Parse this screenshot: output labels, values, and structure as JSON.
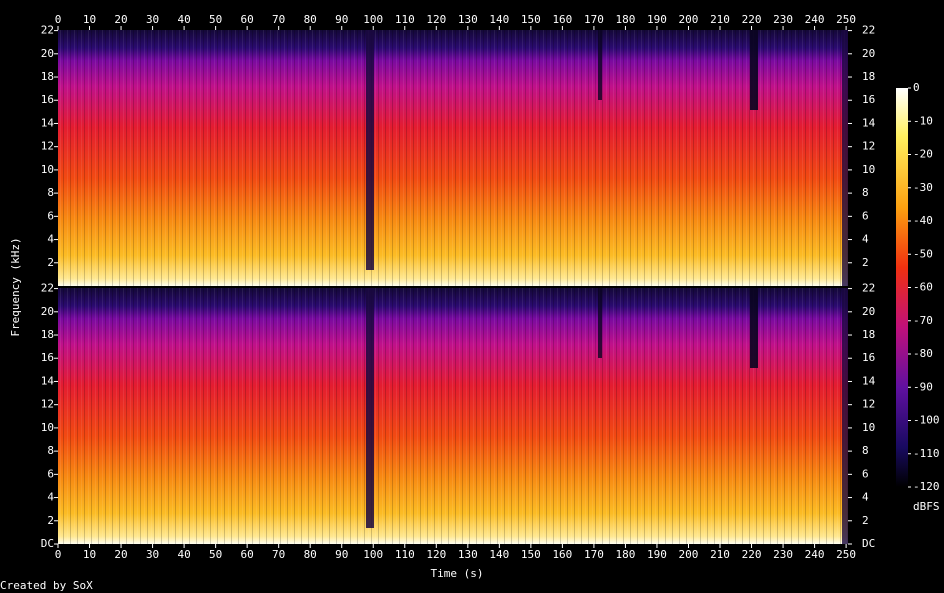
{
  "chart_data": {
    "type": "spectrogram",
    "xlabel": "Time (s)",
    "ylabel": "Frequency (kHz)",
    "xlim": [
      0,
      250.6
    ],
    "xticks": [
      0,
      10,
      20,
      30,
      40,
      50,
      60,
      70,
      80,
      90,
      100,
      110,
      120,
      130,
      140,
      150,
      160,
      170,
      180,
      190,
      200,
      210,
      220,
      230,
      240,
      250
    ],
    "panels": [
      {
        "ylim": [
          0,
          22.05
        ],
        "yticks": [
          2,
          4,
          6,
          8,
          10,
          12,
          14,
          16,
          18,
          20,
          22
        ]
      },
      {
        "ylim": [
          0,
          22.05
        ],
        "yticks": [
          {
            "value": 0,
            "label": "DC"
          },
          2,
          4,
          6,
          8,
          10,
          12,
          14,
          16,
          18,
          20,
          22
        ]
      }
    ],
    "colorbar": {
      "label": "dBFS",
      "lim": [
        -120,
        0
      ],
      "ticks": [
        0,
        -10,
        -20,
        -30,
        -40,
        -50,
        -60,
        -70,
        -80,
        -90,
        -100,
        -110,
        -120
      ]
    },
    "credit": "Created by SoX"
  }
}
